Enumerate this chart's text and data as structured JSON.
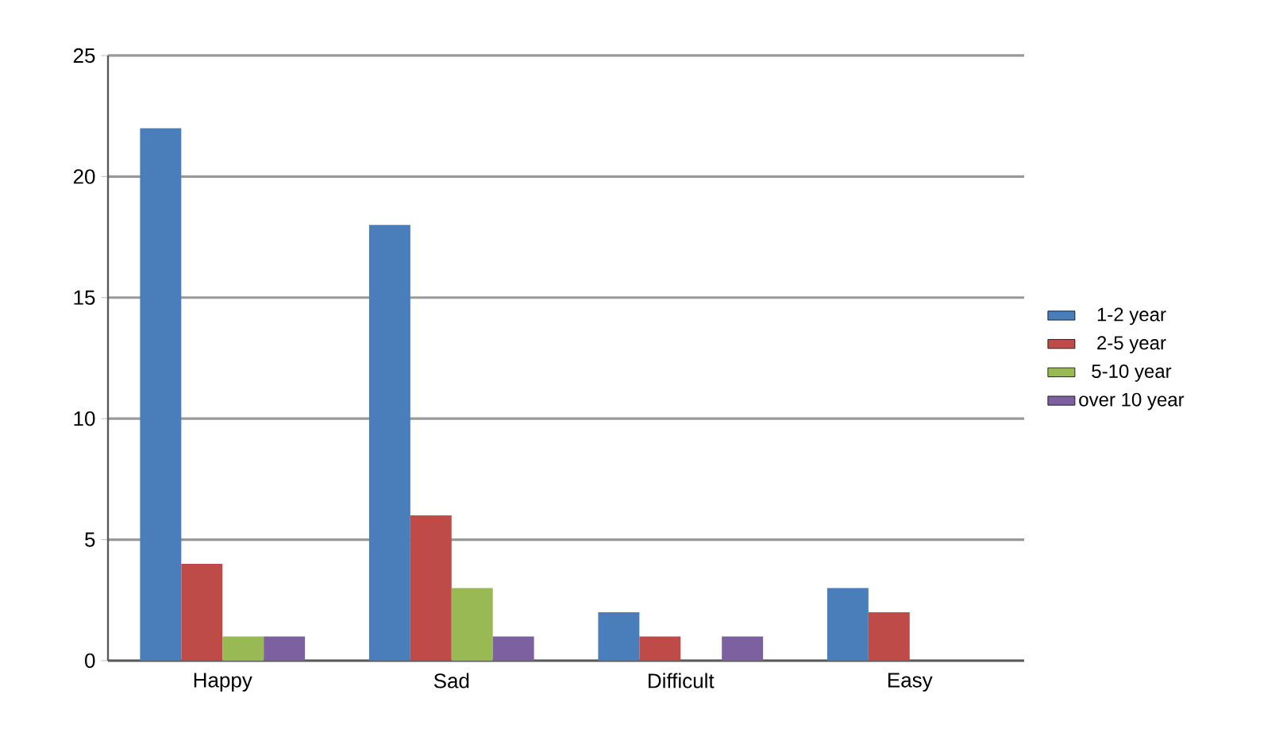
{
  "chart_data": {
    "type": "bar",
    "categories": [
      "Happy",
      "Sad",
      "Difficult",
      "Easy"
    ],
    "series": [
      {
        "name": "1-2 year",
        "color": "#4a7ebb",
        "values": [
          22,
          18,
          2,
          3
        ]
      },
      {
        "name": "2-5 year",
        "color": "#be4b48",
        "values": [
          4,
          6,
          1,
          2
        ]
      },
      {
        "name": "5-10 year",
        "color": "#98b954",
        "values": [
          1,
          3,
          0,
          0
        ]
      },
      {
        "name": "over 10 year",
        "color": "#7d60a0",
        "values": [
          1,
          1,
          1,
          0
        ]
      }
    ],
    "ylim": [
      0,
      25
    ],
    "yticks": [
      0,
      5,
      10,
      15,
      20,
      25
    ],
    "grid": "y",
    "legend": "right"
  }
}
